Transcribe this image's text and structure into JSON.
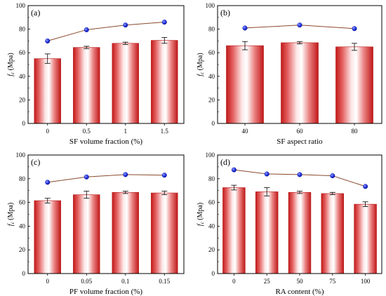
{
  "chart_data": [
    {
      "type": "bar",
      "panel_label": "(a)",
      "categories": [
        "0",
        "0.5",
        "1",
        "1.5"
      ],
      "values": [
        55,
        64.5,
        68,
        70.5
      ],
      "errors": [
        4,
        1,
        1,
        2.5
      ],
      "line_values": [
        70,
        79.5,
        83.5,
        86
      ],
      "xlabel": "SF volume fraction (%)",
      "ylabel_main": "f",
      "ylabel_sub": "c",
      "ylabel_unit": " (Mpa)",
      "ylim": [
        0,
        100
      ],
      "yticks": [
        "0",
        "20",
        "40",
        "60",
        "80",
        "100"
      ]
    },
    {
      "type": "bar",
      "panel_label": "(b)",
      "categories": [
        "40",
        "60",
        "80"
      ],
      "values": [
        66,
        68.5,
        65
      ],
      "errors": [
        3.5,
        1,
        3
      ],
      "line_values": [
        81,
        83.5,
        80.5
      ],
      "xlabel": "SF aspect ratio",
      "ylabel_main": "f",
      "ylabel_sub": "c",
      "ylabel_unit": " (Mpa)",
      "ylim": [
        0,
        100
      ],
      "yticks": [
        "0",
        "20",
        "40",
        "60",
        "80",
        "100"
      ]
    },
    {
      "type": "bar",
      "panel_label": "(c)",
      "categories": [
        "0",
        "0.05",
        "0.1",
        "0.15"
      ],
      "values": [
        61.5,
        66.5,
        68.5,
        68
      ],
      "errors": [
        2,
        3,
        1,
        1.5
      ],
      "line_values": [
        77,
        81.5,
        83.5,
        83
      ],
      "xlabel": "PF volume fraction (%)",
      "ylabel_main": "f",
      "ylabel_sub": "c",
      "ylabel_unit": " (Mpa)",
      "ylim": [
        0,
        100
      ],
      "yticks": [
        "0",
        "20",
        "40",
        "60",
        "80",
        "100"
      ]
    },
    {
      "type": "bar",
      "panel_label": "(d)",
      "categories": [
        "0",
        "25",
        "50",
        "75",
        "100"
      ],
      "values": [
        72.5,
        69,
        68.5,
        67.5,
        58.5
      ],
      "errors": [
        2,
        3.5,
        1,
        1,
        2
      ],
      "line_values": [
        87.5,
        84,
        83.5,
        82.5,
        73.5
      ],
      "xlabel": "RA content (%)",
      "ylabel_main": "f",
      "ylabel_sub": "c",
      "ylabel_unit": " (Mpa)",
      "ylim": [
        0,
        100
      ],
      "yticks": [
        "0",
        "20",
        "40",
        "60",
        "80",
        "100"
      ]
    }
  ]
}
